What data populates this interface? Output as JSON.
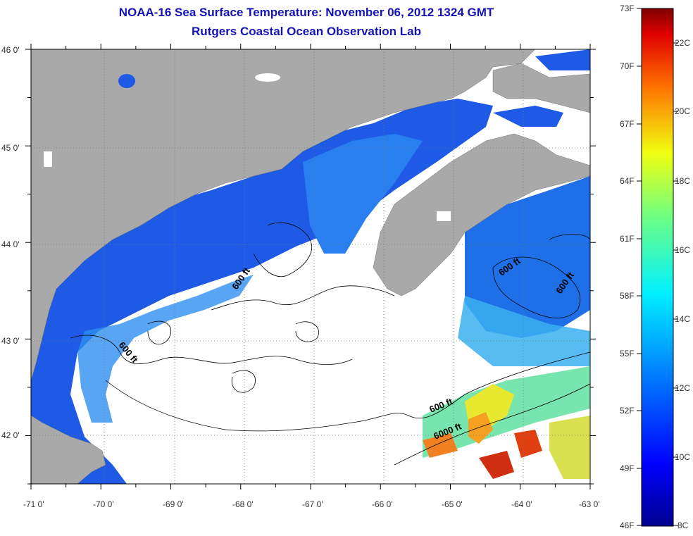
{
  "title": "NOAA-16 Sea Surface Temperature:  November 06, 2012 1324 GMT",
  "subtitle": "Rutgers Coastal Ocean Observation Lab",
  "lat_labels": [
    "46 0'",
    "45 0'",
    "44 0'",
    "43 0'",
    "42 0'"
  ],
  "lon_labels": [
    "-71 0'",
    "-70 0'",
    "-69 0'",
    "-68 0'",
    "-67 0'",
    "-66 0'",
    "-65 0'",
    "-64 0'",
    "-63 0'"
  ],
  "contour_labels": [
    "600 ft",
    "600 ft",
    "600 ft",
    "600 ft",
    "600 ft",
    "6000 ft"
  ],
  "colorbar": {
    "fahrenheit_labels": [
      "73F",
      "70F",
      "67F",
      "64F",
      "61F",
      "58F",
      "55F",
      "52F",
      "49F",
      "46F"
    ],
    "celsius_labels": [
      "22C",
      "20C",
      "18C",
      "16C",
      "14C",
      "12C",
      "10C",
      "8C"
    ]
  },
  "colors": {
    "land": "#a9a9a9",
    "title": "#1414b4",
    "cloud": "#ffffff",
    "sst_cold": "#1a3ce0",
    "sst_mid": "#2fa8f0",
    "sst_warm": "#f0e020",
    "sst_hot": "#d03010"
  }
}
